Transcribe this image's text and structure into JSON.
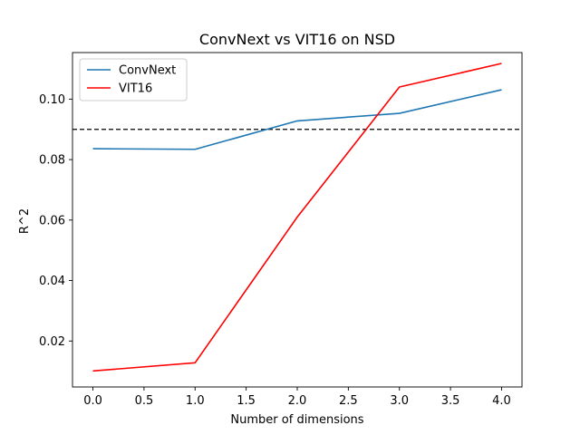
{
  "chart_data": {
    "type": "line",
    "title": "ConvNext vs VIT16 on NSD",
    "xlabel": "Number of dimensions",
    "ylabel": "R^2",
    "xlim": [
      -0.2,
      4.2
    ],
    "ylim": [
      0.0048,
      0.1154
    ],
    "x_ticks": [
      0.0,
      0.5,
      1.0,
      1.5,
      2.0,
      2.5,
      3.0,
      3.5,
      4.0
    ],
    "x_tick_labels": [
      "0.0",
      "0.5",
      "1.0",
      "1.5",
      "2.0",
      "2.5",
      "3.0",
      "3.5",
      "4.0"
    ],
    "y_ticks": [
      0.02,
      0.04,
      0.06,
      0.08,
      0.1
    ],
    "y_tick_labels": [
      "0.02",
      "0.04",
      "0.06",
      "0.08",
      "0.10"
    ],
    "grid": false,
    "legend_position": "top-left",
    "x": [
      0,
      1,
      2,
      3,
      4
    ],
    "series": [
      {
        "name": "ConvNext",
        "color": "#1f77b4",
        "values": [
          0.0836,
          0.0834,
          0.0928,
          0.0953,
          0.1031
        ]
      },
      {
        "name": "VIT16",
        "color": "#ff0000",
        "values": [
          0.0101,
          0.0128,
          0.061,
          0.104,
          0.1118
        ]
      }
    ],
    "reference_line": {
      "y": 0.09,
      "style": "dashed",
      "color": "#000000"
    }
  }
}
